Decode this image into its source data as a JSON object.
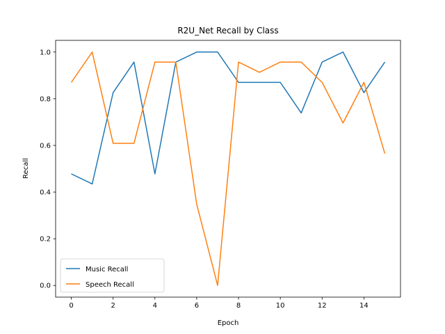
{
  "chart_data": {
    "type": "line",
    "title": "R2U_Net Recall by Class",
    "xlabel": "Epoch",
    "ylabel": "Recall",
    "xlim": [
      -0.75,
      15.75
    ],
    "ylim": [
      -0.05,
      1.05
    ],
    "xticks": [
      0,
      2,
      4,
      6,
      8,
      10,
      12,
      14
    ],
    "yticks": [
      0.0,
      0.2,
      0.4,
      0.6,
      0.8,
      1.0
    ],
    "grid": false,
    "legend_position": "lower-left",
    "x": [
      0,
      1,
      2,
      3,
      4,
      5,
      6,
      7,
      8,
      9,
      10,
      11,
      12,
      13,
      14,
      15
    ],
    "series": [
      {
        "name": "Music Recall",
        "color": "#1f77b4",
        "values": [
          0.478,
          0.435,
          0.826,
          0.957,
          0.478,
          0.957,
          1.0,
          1.0,
          0.87,
          0.87,
          0.87,
          0.739,
          0.957,
          1.0,
          0.826,
          0.957
        ]
      },
      {
        "name": "Speech Recall",
        "color": "#ff7f0e",
        "values": [
          0.87,
          1.0,
          0.609,
          0.609,
          0.957,
          0.957,
          0.348,
          0.0,
          0.957,
          0.913,
          0.957,
          0.957,
          0.87,
          0.696,
          0.87,
          0.565
        ]
      }
    ]
  }
}
